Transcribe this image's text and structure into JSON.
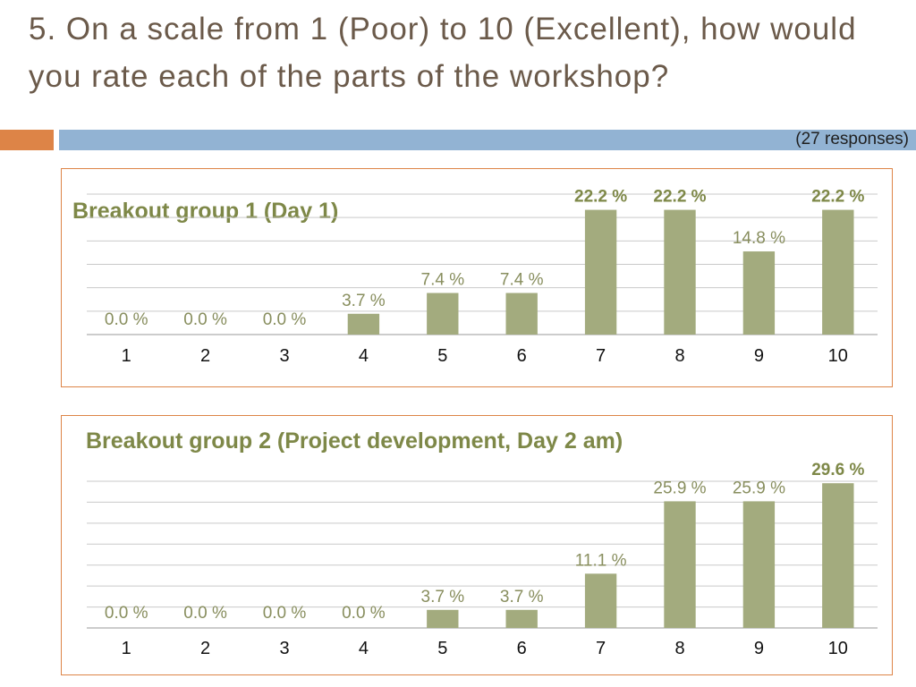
{
  "slide": {
    "title": "5. On a scale from 1 (Poor) to 10 (Excellent), how would you rate each of the parts of the workshop?",
    "responses_note": "(27 responses)"
  },
  "colors": {
    "bar": "#a3ab7e",
    "title_text": "#6b5a4a",
    "chart_title": "#7e8848",
    "data_label": "#888e5e",
    "accent_orange": "#dd8447",
    "accent_blue": "#92b3d3",
    "panel_border": "#dd8447"
  },
  "chart_data": [
    {
      "type": "bar",
      "title": "Breakout group 1 (Day 1)",
      "categories": [
        "1",
        "2",
        "3",
        "4",
        "5",
        "6",
        "7",
        "8",
        "9",
        "10"
      ],
      "values": [
        0.0,
        0.0,
        0.0,
        3.7,
        7.4,
        7.4,
        22.2,
        22.2,
        14.8,
        22.2
      ],
      "value_labels": [
        "0.0 %",
        "0.0 %",
        "0.0 %",
        "3.7 %",
        "7.4 %",
        "7.4 %",
        "22.2 %",
        "22.2 %",
        "14.8 %",
        "22.2 %"
      ],
      "highlight_max": true,
      "unit": "%",
      "ylim": [
        0,
        25
      ],
      "grid": true,
      "legend": "none"
    },
    {
      "type": "bar",
      "title": "Breakout group 2 (Project development, Day 2 am)",
      "categories": [
        "1",
        "2",
        "3",
        "4",
        "5",
        "6",
        "7",
        "8",
        "9",
        "10"
      ],
      "values": [
        0.0,
        0.0,
        0.0,
        0.0,
        3.7,
        3.7,
        11.1,
        25.9,
        25.9,
        29.6
      ],
      "value_labels": [
        "0.0 %",
        "0.0 %",
        "0.0 %",
        "0.0 %",
        "3.7 %",
        "3.7 %",
        "11.1 %",
        "25.9 %",
        "25.9 %",
        "29.6 %"
      ],
      "highlight_max": true,
      "unit": "%",
      "ylim": [
        0,
        30
      ],
      "grid": true,
      "legend": "none"
    }
  ]
}
